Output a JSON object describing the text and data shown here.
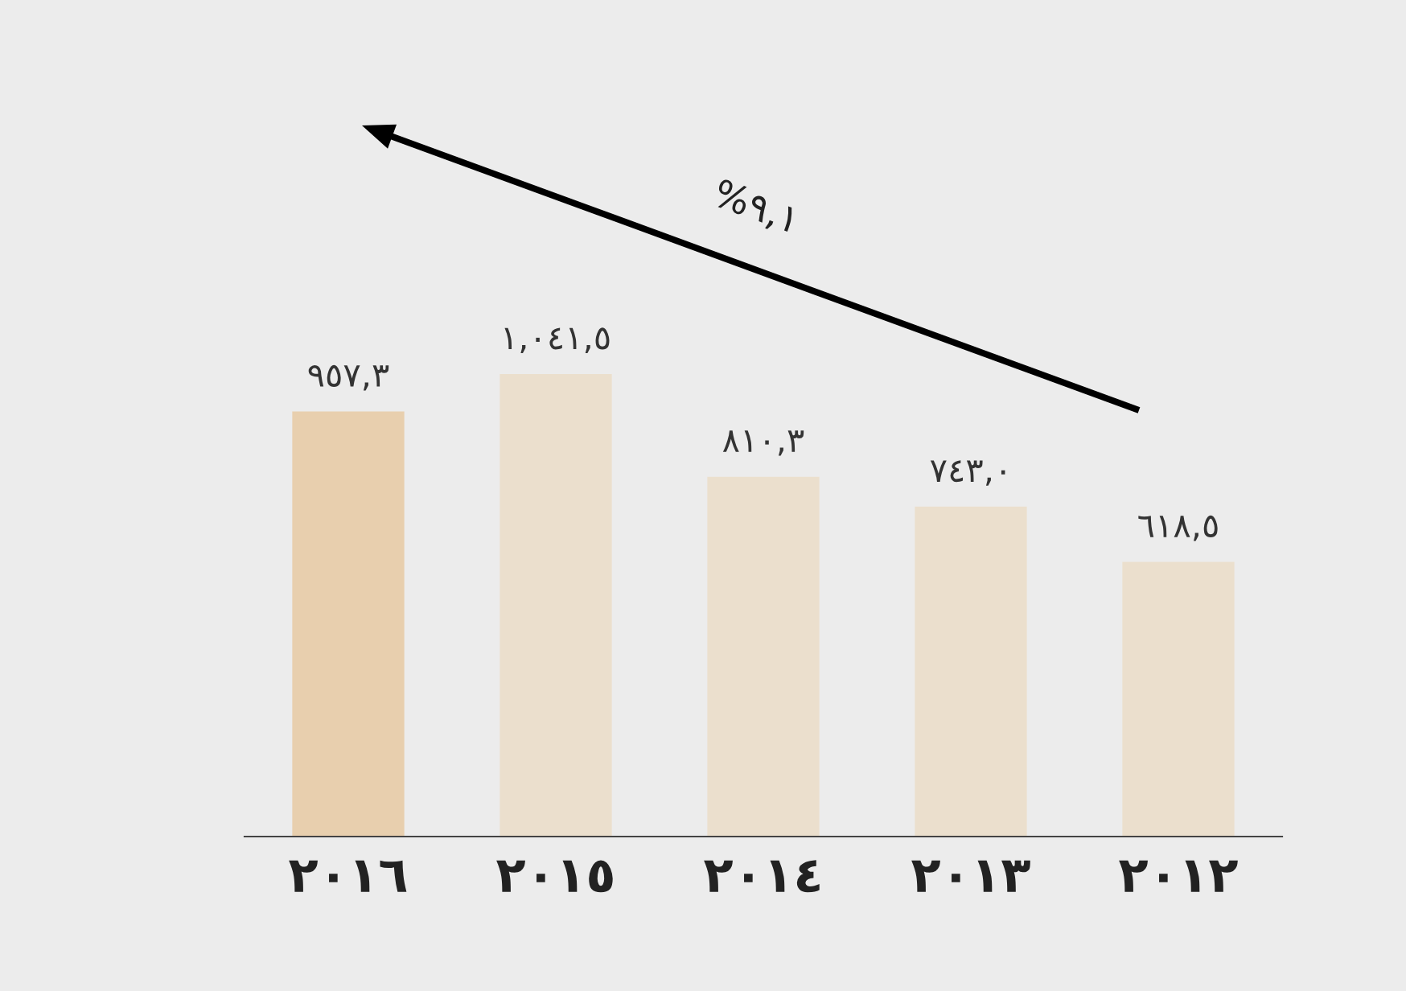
{
  "chart_data": {
    "type": "bar",
    "categories": [
      "٢٠١٦",
      "٢٠١٥",
      "٢٠١٤",
      "٢٠١٣",
      "٢٠١٢"
    ],
    "values": [
      957.3,
      1041.5,
      810.3,
      743.0,
      618.5
    ],
    "value_labels": [
      "٩٥٧,٣",
      "١,٠٤١,٥",
      "٨١٠,٣",
      "٧٤٣,٠",
      "٦١٨,٥"
    ],
    "colors": [
      "#e8cfae",
      "#ebdfcd",
      "#ebdfcd",
      "#ebdfcd",
      "#ebdfcd"
    ],
    "annotations": [
      "%٩,١"
    ],
    "grid": false,
    "legend": false
  }
}
